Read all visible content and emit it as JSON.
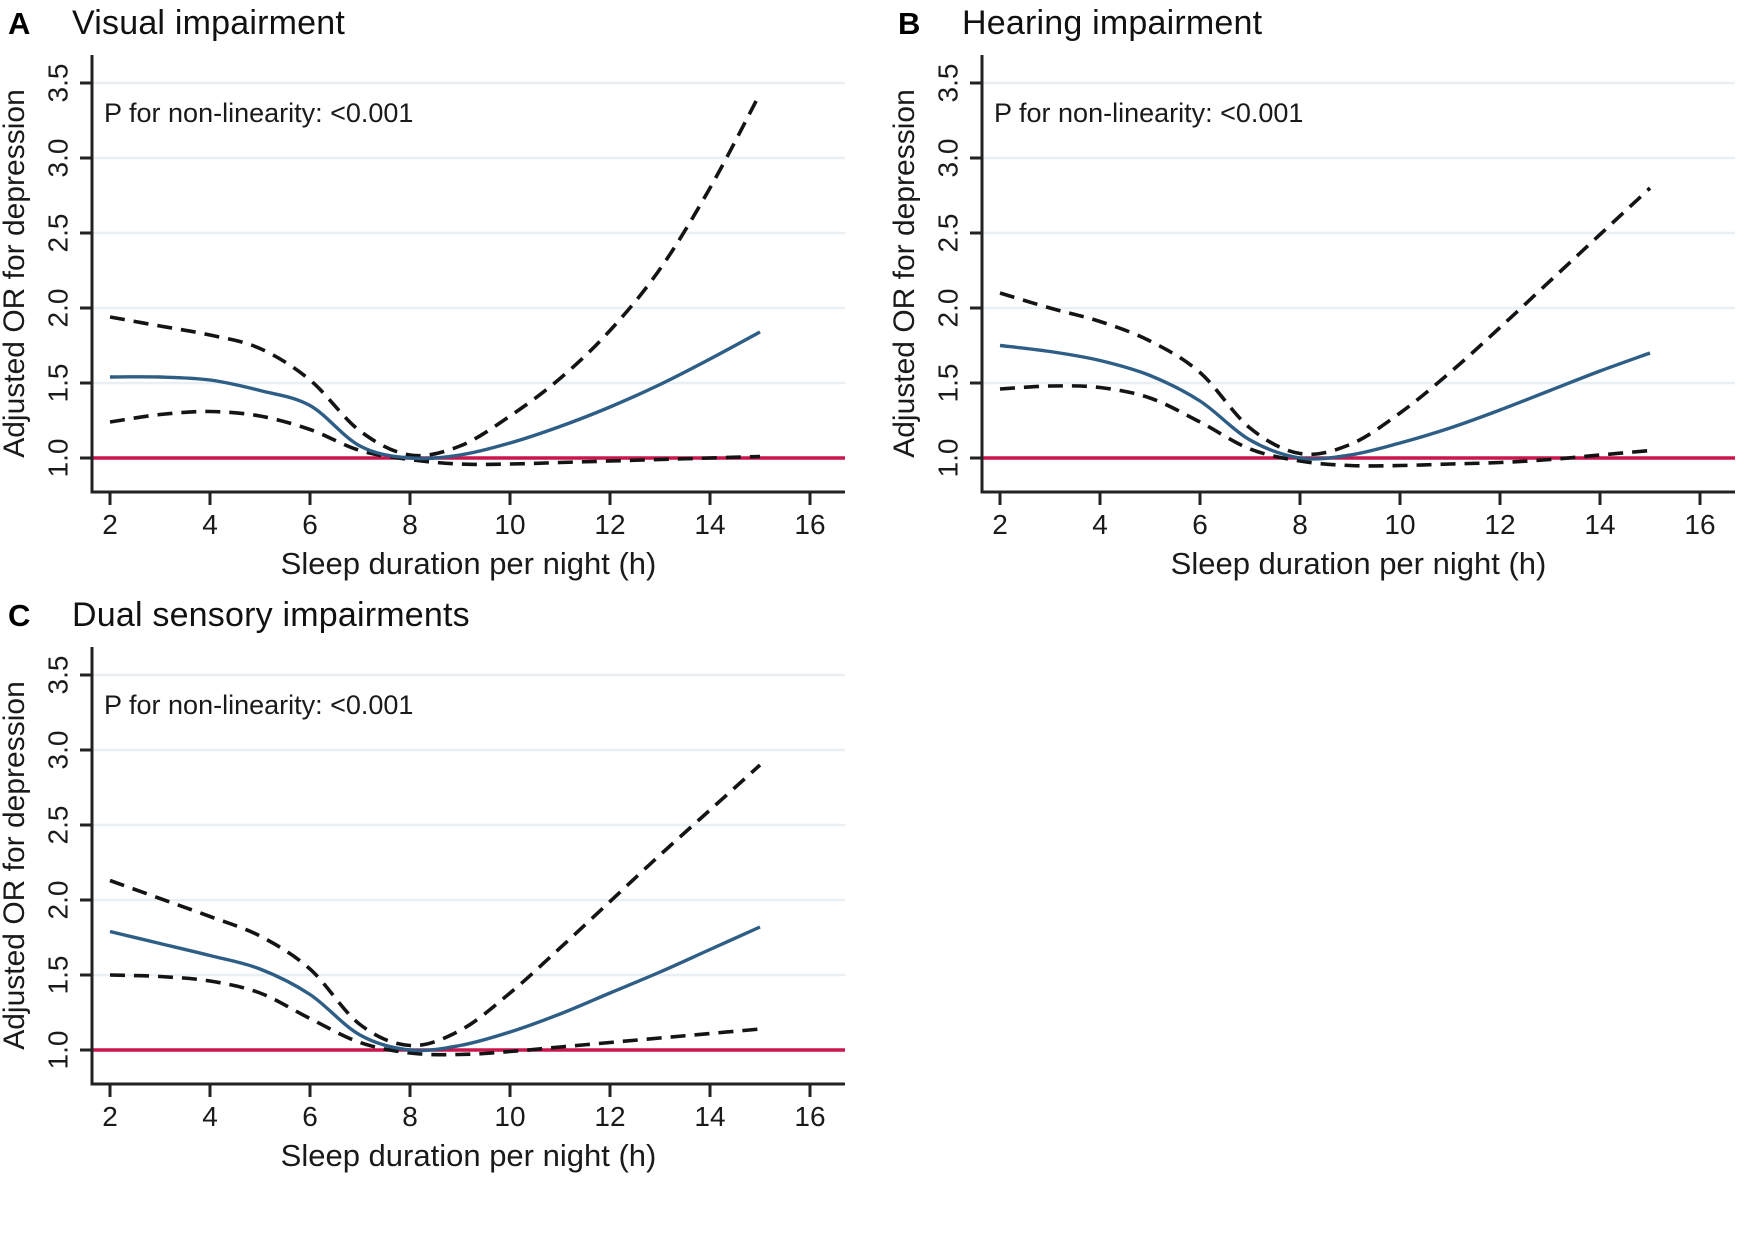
{
  "figure": {
    "background": "#ffffff",
    "note": ""
  },
  "colors": {
    "or_line": "#2e5e85",
    "ci_line": "#141414",
    "reference_line": "#c8174d",
    "grid": "#e9eff3",
    "axis": "#222222",
    "text": "#1a1a1a"
  },
  "chart_data": [
    {
      "type": "line",
      "panel_label": "A",
      "title": "Visual impairment",
      "annotation": "P for non-linearity: <0.001",
      "xlabel": "Sleep duration per night (h)",
      "ylabel": "Adjusted OR for depression",
      "x_ticks": [
        2,
        4,
        6,
        8,
        10,
        12,
        14,
        16
      ],
      "y_ticks": [
        1.0,
        1.5,
        2.0,
        2.5,
        3.0,
        3.5
      ],
      "xlim": [
        1.6,
        16.7
      ],
      "ylim": [
        0.77,
        3.7
      ],
      "grid": true,
      "legend": "none",
      "reference_line": 1.0,
      "x": [
        2,
        3,
        4,
        5,
        6,
        7,
        8,
        9,
        10,
        11,
        12,
        13,
        14,
        15
      ],
      "series": [
        {
          "name": "Adjusted OR",
          "style": "solid",
          "color": "#2e5e85",
          "values": [
            1.54,
            1.54,
            1.52,
            1.45,
            1.35,
            1.08,
            1.0,
            1.02,
            1.1,
            1.21,
            1.34,
            1.49,
            1.66,
            1.84
          ]
        },
        {
          "name": "Upper 95% CI",
          "style": "dashed",
          "color": "#141414",
          "values": [
            1.94,
            1.88,
            1.82,
            1.73,
            1.52,
            1.18,
            1.02,
            1.08,
            1.28,
            1.53,
            1.85,
            2.26,
            2.8,
            3.43
          ]
        },
        {
          "name": "Lower 95% CI",
          "style": "dashed",
          "color": "#141414",
          "values": [
            1.24,
            1.29,
            1.31,
            1.28,
            1.19,
            1.05,
            0.99,
            0.96,
            0.96,
            0.97,
            0.98,
            0.99,
            1.0,
            1.01
          ]
        }
      ]
    },
    {
      "type": "line",
      "panel_label": "B",
      "title": "Hearing impairment",
      "annotation": "P for non-linearity: <0.001",
      "xlabel": "Sleep duration per night (h)",
      "ylabel": "Adjusted OR for depression",
      "x_ticks": [
        2,
        4,
        6,
        8,
        10,
        12,
        14,
        16
      ],
      "y_ticks": [
        1.0,
        1.5,
        2.0,
        2.5,
        3.0,
        3.5
      ],
      "xlim": [
        1.6,
        16.7
      ],
      "ylim": [
        0.77,
        3.7
      ],
      "grid": true,
      "legend": "none",
      "reference_line": 1.0,
      "x": [
        2,
        3,
        4,
        5,
        6,
        7,
        8,
        9,
        10,
        11,
        12,
        13,
        14,
        15
      ],
      "series": [
        {
          "name": "Adjusted OR",
          "style": "solid",
          "color": "#2e5e85",
          "values": [
            1.75,
            1.71,
            1.65,
            1.55,
            1.38,
            1.12,
            1.0,
            1.02,
            1.1,
            1.2,
            1.32,
            1.45,
            1.58,
            1.7
          ]
        },
        {
          "name": "Upper 95% CI",
          "style": "dashed",
          "color": "#141414",
          "values": [
            2.1,
            2.0,
            1.91,
            1.78,
            1.57,
            1.2,
            1.03,
            1.09,
            1.3,
            1.57,
            1.87,
            2.18,
            2.49,
            2.8
          ]
        },
        {
          "name": "Lower 95% CI",
          "style": "dashed",
          "color": "#141414",
          "values": [
            1.46,
            1.48,
            1.47,
            1.4,
            1.24,
            1.06,
            0.98,
            0.95,
            0.95,
            0.96,
            0.97,
            0.99,
            1.02,
            1.05
          ]
        }
      ]
    },
    {
      "type": "line",
      "panel_label": "C",
      "title": "Dual sensory impairments",
      "annotation": "P for non-linearity: <0.001",
      "xlabel": "Sleep duration per night (h)",
      "ylabel": "Adjusted OR for depression",
      "x_ticks": [
        2,
        4,
        6,
        8,
        10,
        12,
        14,
        16
      ],
      "y_ticks": [
        1.0,
        1.5,
        2.0,
        2.5,
        3.0,
        3.5
      ],
      "xlim": [
        1.6,
        16.7
      ],
      "ylim": [
        0.77,
        3.7
      ],
      "grid": true,
      "legend": "none",
      "reference_line": 1.0,
      "x": [
        2,
        3,
        4,
        5,
        6,
        7,
        8,
        9,
        10,
        11,
        12,
        13,
        14,
        15
      ],
      "series": [
        {
          "name": "Adjusted OR",
          "style": "solid",
          "color": "#2e5e85",
          "values": [
            1.79,
            1.71,
            1.63,
            1.54,
            1.37,
            1.1,
            1.0,
            1.03,
            1.12,
            1.24,
            1.38,
            1.52,
            1.67,
            1.82
          ]
        },
        {
          "name": "Upper 95% CI",
          "style": "dashed",
          "color": "#141414",
          "values": [
            2.13,
            2.01,
            1.89,
            1.76,
            1.54,
            1.17,
            1.03,
            1.13,
            1.38,
            1.68,
            1.99,
            2.3,
            2.6,
            2.9
          ]
        },
        {
          "name": "Lower 95% CI",
          "style": "dashed",
          "color": "#141414",
          "values": [
            1.5,
            1.49,
            1.46,
            1.38,
            1.21,
            1.05,
            0.98,
            0.97,
            0.99,
            1.02,
            1.05,
            1.08,
            1.11,
            1.14
          ]
        }
      ]
    }
  ]
}
